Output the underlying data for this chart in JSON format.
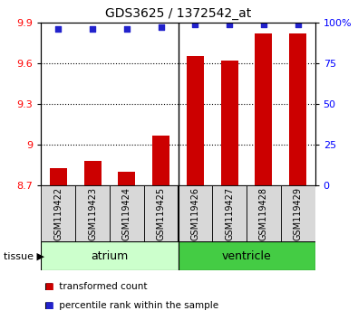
{
  "title": "GDS3625 / 1372542_at",
  "samples": [
    "GSM119422",
    "GSM119423",
    "GSM119424",
    "GSM119425",
    "GSM119426",
    "GSM119427",
    "GSM119428",
    "GSM119429"
  ],
  "bar_values": [
    8.83,
    8.88,
    8.8,
    9.07,
    9.65,
    9.62,
    9.82,
    9.82
  ],
  "percentile_values": [
    96,
    96,
    96,
    97,
    99,
    99,
    99,
    99
  ],
  "bar_bottom": 8.7,
  "ylim_left": [
    8.7,
    9.9
  ],
  "ylim_right": [
    0,
    100
  ],
  "yticks_left": [
    8.7,
    9.0,
    9.3,
    9.6,
    9.9
  ],
  "yticks_right": [
    0,
    25,
    50,
    75,
    100
  ],
  "ytick_labels_left": [
    "8.7",
    "9",
    "9.3",
    "9.6",
    "9.9"
  ],
  "ytick_labels_right": [
    "0",
    "25",
    "50",
    "75",
    "100%"
  ],
  "grid_ticks": [
    9.0,
    9.3,
    9.6
  ],
  "bar_color": "#cc0000",
  "dot_color": "#2222cc",
  "tissue_groups": [
    {
      "label": "atrium",
      "start": 0,
      "end": 4,
      "color": "#ccffcc"
    },
    {
      "label": "ventricle",
      "start": 4,
      "end": 8,
      "color": "#44cc44"
    }
  ],
  "tissue_label": "tissue",
  "legend_bar_label": "transformed count",
  "legend_dot_label": "percentile rank within the sample",
  "bg_color": "#d8d8d8",
  "sample_cell_sep": 4
}
